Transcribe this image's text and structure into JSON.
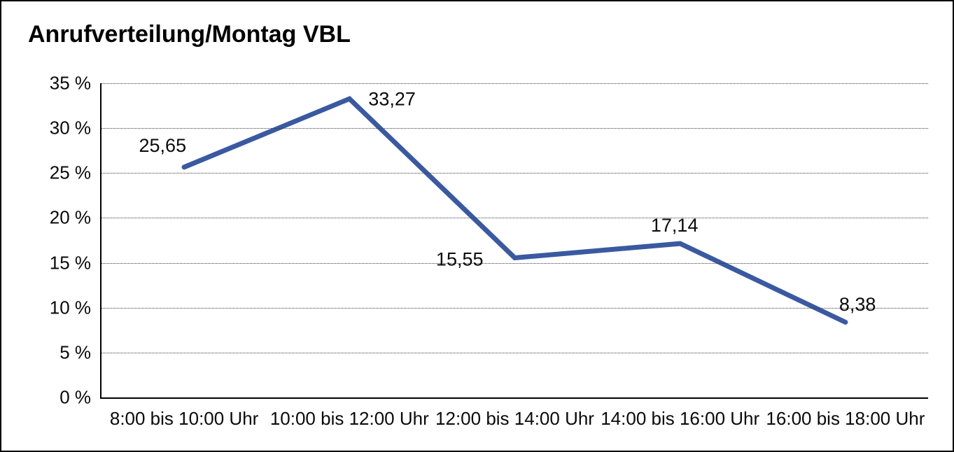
{
  "chart_data": {
    "type": "line",
    "title": "Anrufverteilung/Montag VBL",
    "categories": [
      "8:00 bis 10:00 Uhr",
      "10:00 bis 12:00 Uhr",
      "12:00 bis 14:00 Uhr",
      "14:00 bis 16:00 Uhr",
      "16:00 bis 18:00 Uhr"
    ],
    "values": [
      25.65,
      33.27,
      15.55,
      17.14,
      8.38
    ],
    "point_labels": [
      "25,65",
      "33,27",
      "15,55",
      "17,14",
      "8,38"
    ],
    "xlabel": "",
    "ylabel": "",
    "ylim": [
      0,
      35
    ],
    "ytick_step": 5,
    "ytick_labels": [
      "35 %",
      "30 %",
      "25 %",
      "20 %",
      "15 %",
      "10 %",
      "5 %",
      "0 %"
    ],
    "grid": "horizontal-dotted",
    "legend_position": "none",
    "line_color": "#3A59A0",
    "line_width": 7,
    "text_color": "#0a0a0a",
    "background_color": "#ffffff"
  }
}
